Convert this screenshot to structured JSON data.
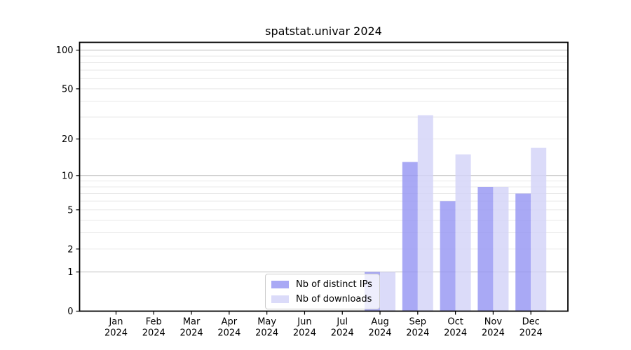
{
  "chart_data": {
    "type": "bar",
    "title": "spatstat.univar 2024",
    "categories": [
      "Jan 2024",
      "Feb 2024",
      "Mar 2024",
      "Apr 2024",
      "May 2024",
      "Jun 2024",
      "Jul 2024",
      "Aug 2024",
      "Sep 2024",
      "Oct 2024",
      "Nov 2024",
      "Dec 2024"
    ],
    "series": [
      {
        "name": "Nb of distinct IPs",
        "color": "#9393f2",
        "values": [
          0,
          0,
          0,
          0,
          0,
          0,
          0,
          1,
          13,
          6,
          8,
          7
        ]
      },
      {
        "name": "Nb of downloads",
        "color": "#d2d2f7",
        "values": [
          0,
          0,
          0,
          0,
          0,
          0,
          0,
          1,
          31,
          15,
          8,
          17
        ]
      }
    ],
    "bar_alpha": 0.8,
    "yscale": "log1p",
    "ylim": [
      0,
      115
    ],
    "y_ticks": [
      0,
      1,
      2,
      5,
      10,
      20,
      50,
      100
    ],
    "y_major_gridlines": [
      1,
      10,
      100
    ],
    "y_minor_gridlines": [
      2,
      3,
      4,
      5,
      6,
      7,
      8,
      9,
      20,
      30,
      40,
      50,
      60,
      70,
      80,
      90
    ],
    "grid": "on",
    "legend_position": "lower center",
    "colors": {
      "frame": "#000000",
      "tick_label": "#000000",
      "grid_major": "#bcbcbc",
      "grid_minor": "#e8e8e8",
      "legend_border": "#cccccc"
    }
  }
}
